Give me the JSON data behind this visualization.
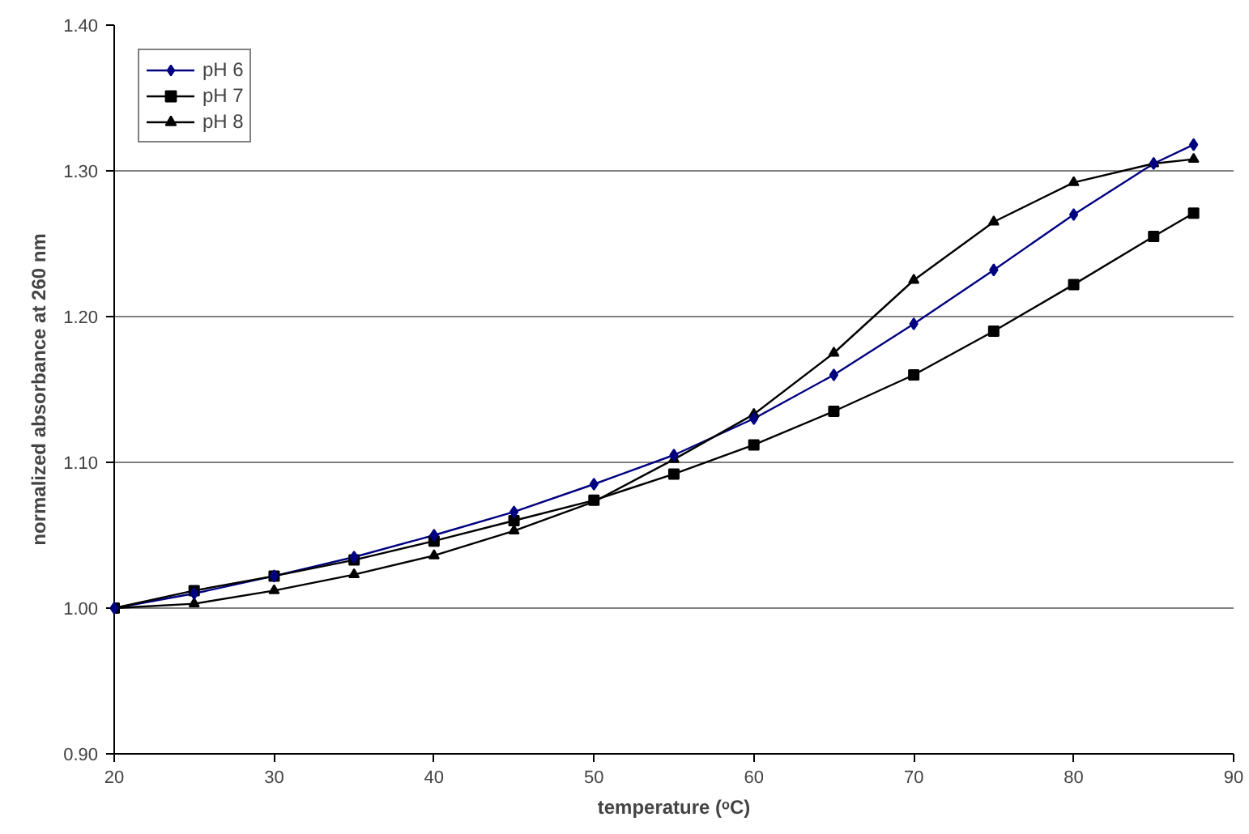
{
  "chart_data": {
    "type": "line",
    "xlabel": "temperature (ᵒC)",
    "ylabel": "normalized absorbance at 260 nm",
    "xlim": [
      20,
      90
    ],
    "xticks": [
      20,
      30,
      40,
      50,
      60,
      70,
      80,
      90
    ],
    "ylim": [
      0.9,
      1.4
    ],
    "yticks": [
      {
        "value": 0.9,
        "label": "0.90"
      },
      {
        "value": 1.0,
        "label": "1.00"
      },
      {
        "value": 1.1,
        "label": "1.10"
      },
      {
        "value": 1.2,
        "label": "1.20"
      },
      {
        "value": 1.3,
        "label": "1.30"
      },
      {
        "value": 1.4,
        "label": "1.40"
      }
    ],
    "x": [
      20,
      25,
      30,
      35,
      40,
      45,
      50,
      55,
      60,
      65,
      70,
      75,
      80,
      85,
      87.5
    ],
    "grid": "y",
    "legend": "top left",
    "line_style": "solid",
    "series": [
      {
        "name": "pH 6",
        "color": "#000080",
        "marker": "diamond",
        "values": [
          1.0,
          1.01,
          1.022,
          1.035,
          1.05,
          1.066,
          1.085,
          1.105,
          1.13,
          1.16,
          1.195,
          1.232,
          1.27,
          1.305,
          1.318
        ]
      },
      {
        "name": "pH 7",
        "color": "#000000",
        "marker": "square",
        "values": [
          1.0,
          1.012,
          1.022,
          1.033,
          1.046,
          1.06,
          1.074,
          1.092,
          1.112,
          1.135,
          1.16,
          1.19,
          1.222,
          1.255,
          1.271
        ]
      },
      {
        "name": "pH 8",
        "color": "#000000",
        "marker": "triangle",
        "values": [
          1.0,
          1.003,
          1.012,
          1.023,
          1.036,
          1.053,
          1.073,
          1.102,
          1.133,
          1.175,
          1.225,
          1.265,
          1.292,
          1.305,
          1.308
        ]
      }
    ]
  }
}
